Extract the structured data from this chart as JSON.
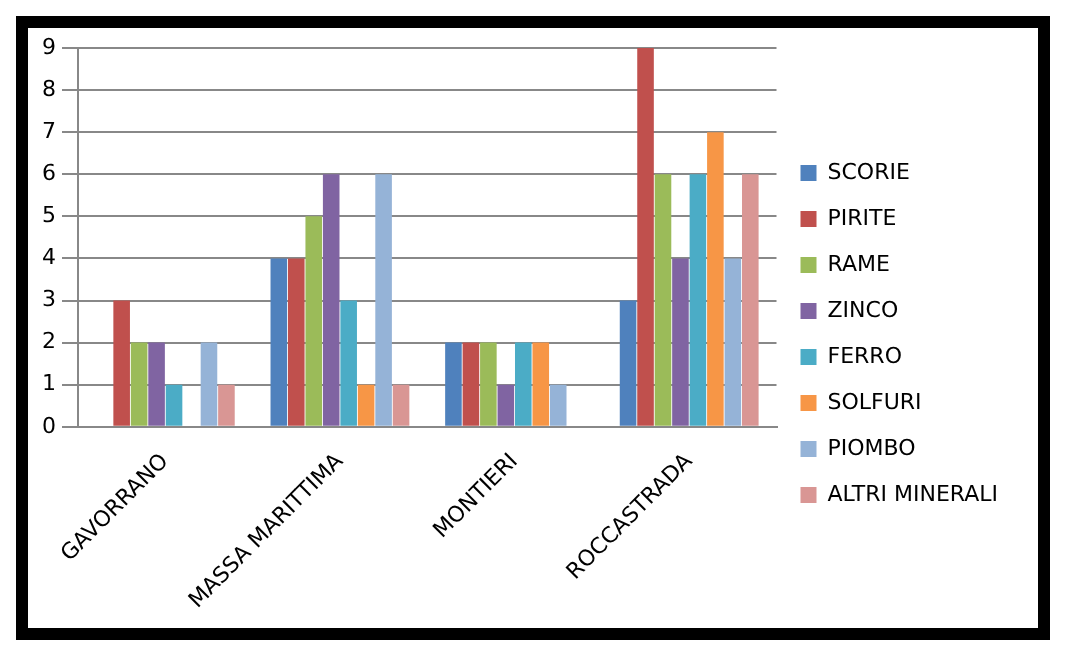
{
  "chart_data": {
    "type": "bar",
    "categories": [
      "GAVORRANO",
      "MASSA MARITTIMA",
      "MONTIERI",
      "ROCCASTRADA"
    ],
    "series": [
      {
        "name": "SCORIE",
        "color": "#4f81bd",
        "values": [
          0,
          4,
          2,
          3
        ]
      },
      {
        "name": "PIRITE",
        "color": "#c0504d",
        "values": [
          3,
          4,
          2,
          9
        ]
      },
      {
        "name": "RAME",
        "color": "#9bbb59",
        "values": [
          2,
          5,
          2,
          6
        ]
      },
      {
        "name": "ZINCO",
        "color": "#8064a2",
        "values": [
          2,
          6,
          1,
          4
        ]
      },
      {
        "name": "FERRO",
        "color": "#4bacc6",
        "values": [
          1,
          3,
          2,
          6
        ]
      },
      {
        "name": "SOLFURI",
        "color": "#f79646",
        "values": [
          0,
          1,
          2,
          7
        ]
      },
      {
        "name": "PIOMBO",
        "color": "#95b3d7",
        "values": [
          2,
          6,
          1,
          4
        ]
      },
      {
        "name": "ALTRI MINERALI",
        "color": "#d99694",
        "values": [
          1,
          1,
          0,
          6
        ]
      }
    ],
    "ylim": [
      0,
      9
    ],
    "yticks": [
      0,
      1,
      2,
      3,
      4,
      5,
      6,
      7,
      8,
      9
    ],
    "grid": "y",
    "legend": "right"
  }
}
